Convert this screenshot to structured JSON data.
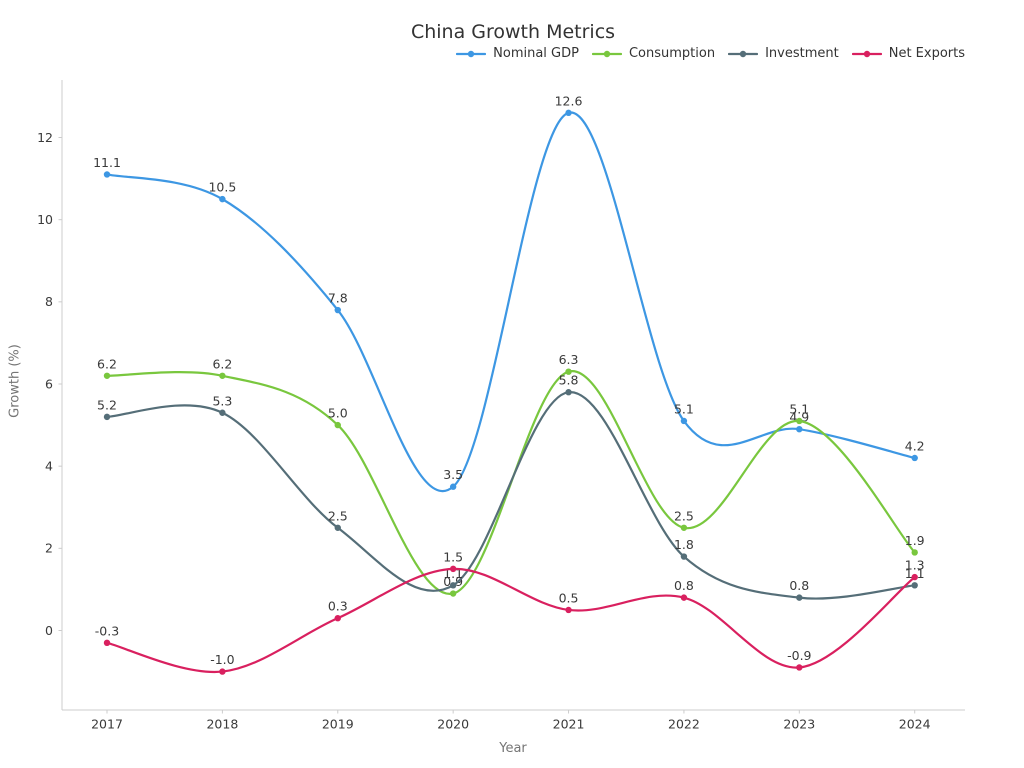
{
  "chart_data": {
    "type": "line",
    "title": "China Growth Metrics",
    "xlabel": "Year",
    "ylabel": "Growth (%)",
    "categories": [
      "2017",
      "2018",
      "2019",
      "2020",
      "2021",
      "2022",
      "2023",
      "2024"
    ],
    "yticks": [
      0,
      2,
      4,
      6,
      8,
      10,
      12
    ],
    "ylim": [
      -1.94,
      13.4
    ],
    "grid": false,
    "smooth": true,
    "markers": true,
    "point_labels": true,
    "legend_position": "top-right",
    "series": [
      {
        "name": "Nominal GDP",
        "color": "#3d97e3",
        "values": [
          11.1,
          10.5,
          7.8,
          3.5,
          12.6,
          5.1,
          4.9,
          4.2
        ]
      },
      {
        "name": "Consumption",
        "color": "#79c73e",
        "values": [
          6.2,
          6.2,
          5.0,
          0.9,
          6.3,
          2.5,
          5.1,
          1.9
        ]
      },
      {
        "name": "Investment",
        "color": "#556e78",
        "values": [
          5.2,
          5.3,
          2.5,
          1.1,
          5.8,
          1.8,
          0.8,
          1.1
        ]
      },
      {
        "name": "Net Exports",
        "color": "#d9205f",
        "values": [
          -0.3,
          -1.0,
          0.3,
          1.5,
          0.5,
          0.8,
          -0.9,
          1.3
        ]
      }
    ],
    "colors": {
      "axis": "#cccccc",
      "tick_label": "#3a3a3a",
      "data_label": "#3a3a3a",
      "axis_label": "#757575",
      "title": "#333333",
      "background": "#ffffff"
    }
  }
}
